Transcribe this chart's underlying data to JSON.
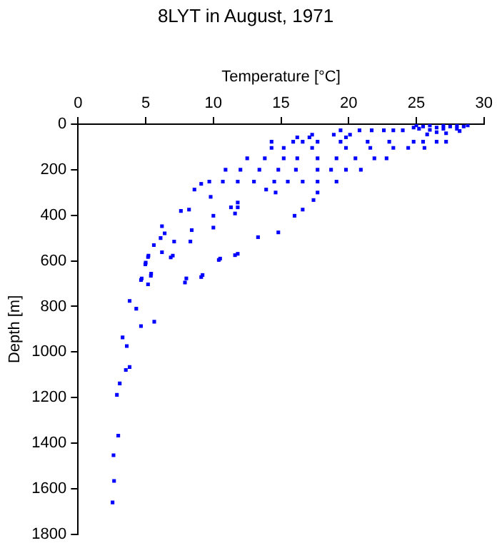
{
  "chart_data": {
    "type": "scatter",
    "title": "8LYT in August, 1971",
    "xlabel": "Temperature [°C]",
    "ylabel": "Depth [m]",
    "xlim": [
      0,
      30
    ],
    "xticks": [
      0,
      5,
      10,
      15,
      20,
      25,
      30
    ],
    "ylim": [
      1800,
      0
    ],
    "yticks": [
      0,
      200,
      400,
      600,
      800,
      1000,
      1200,
      1400,
      1600,
      1800
    ],
    "grid": false,
    "legend": false,
    "marker": "square",
    "series": [
      {
        "color": "#0000ff",
        "x": [
          24.8,
          25,
          25.5,
          26,
          26.5,
          27,
          27.5,
          28,
          28.5,
          28.8,
          25.2,
          26,
          27,
          28,
          26.5,
          27.2,
          25.8,
          28.2,
          19.4,
          20.8,
          21.7,
          22.6,
          23.3,
          24,
          17.3,
          18.9,
          20.1,
          17.1,
          16.2,
          19.8,
          14.3,
          15.9,
          16.6,
          17.7,
          19.4,
          21.4,
          23,
          24.8,
          25.5,
          26.5,
          27.2,
          14.3,
          15.2,
          17.3,
          19.8,
          21.6,
          23.3,
          24.4,
          25.6,
          12.5,
          13.8,
          15.2,
          16.2,
          17.7,
          19.1,
          20.5,
          21.9,
          22.8,
          10.9,
          12,
          13.4,
          14.8,
          16.1,
          17.7,
          18.7,
          19.8,
          20.9,
          9.7,
          10.7,
          11.8,
          13,
          14.5,
          15.5,
          16.6,
          17.7,
          19.1,
          9.1,
          8.6,
          13.9,
          14.6,
          17.7,
          9.8,
          17.4,
          11.8,
          11.3,
          11.8,
          8.2,
          16.6,
          7.6,
          11.6,
          10,
          16,
          6.2,
          10,
          8.4,
          14.8,
          6.4,
          13.3,
          6.1,
          7.1,
          8.3,
          5.6,
          6.2,
          11.8,
          5.2,
          7,
          10.5,
          5,
          5.4,
          9.2,
          4.7,
          8,
          5.17,
          4.97,
          6.85,
          7.9,
          9.1,
          10.4,
          11.6,
          4.65,
          5.17,
          5.38,
          3.81,
          4.3,
          4.65,
          5.63,
          3.29,
          3.6,
          3.53,
          3.81,
          3.08,
          2.87,
          2.97,
          2.62,
          2.66,
          2.55
        ],
        "values": [
          15,
          5,
          10,
          5,
          15,
          5,
          10,
          5,
          10,
          5,
          20,
          25,
          20,
          20,
          35,
          40,
          45,
          30,
          27,
          27,
          27,
          27,
          27,
          27,
          46,
          46,
          46,
          58,
          58,
          58,
          77,
          77,
          77,
          77,
          77,
          77,
          77,
          77,
          77,
          77,
          77,
          104,
          104,
          104,
          104,
          104,
          104,
          104,
          104,
          150,
          150,
          150,
          150,
          150,
          150,
          150,
          150,
          150,
          200,
          200,
          200,
          200,
          200,
          200,
          200,
          200,
          200,
          252,
          252,
          252,
          252,
          252,
          252,
          252,
          252,
          252,
          262,
          287,
          287,
          300,
          300,
          319,
          333,
          344,
          365,
          365,
          375,
          375,
          381,
          392,
          402,
          402,
          448,
          454,
          465,
          475,
          479,
          496,
          500,
          515,
          515,
          531,
          562,
          569,
          577,
          577,
          590,
          608,
          656,
          662,
          677,
          677,
          583,
          615,
          585,
          695,
          671,
          596,
          575,
          684,
          703,
          665,
          776,
          810,
          886,
          867,
          936,
          974,
          1079,
          1066,
          1138,
          1188,
          1367,
          1453,
          1566,
          1660
        ]
      }
    ]
  }
}
